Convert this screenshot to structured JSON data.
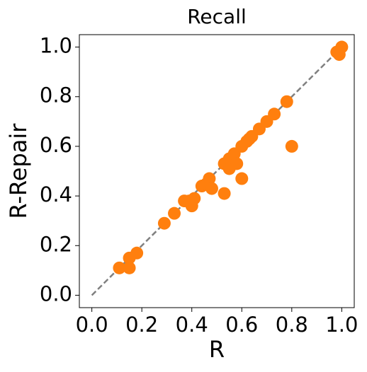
{
  "chart_data": {
    "type": "scatter",
    "title": "Recall",
    "x_label": "R",
    "y_label": "R-Repair",
    "series": [
      {
        "color": "#ff7f0e",
        "x": [
          0.11,
          0.15,
          0.15,
          0.18,
          0.29,
          0.33,
          0.37,
          0.39,
          0.4,
          0.41,
          0.44,
          0.46,
          0.47,
          0.48,
          0.53,
          0.53,
          0.55,
          0.55,
          0.56,
          0.57,
          0.58,
          0.6,
          0.6,
          0.62,
          0.63,
          0.64,
          0.67,
          0.7,
          0.73,
          0.78,
          0.8,
          0.98,
          0.99,
          1.0
        ],
        "values": [
          0.11,
          0.15,
          0.11,
          0.17,
          0.29,
          0.33,
          0.38,
          0.38,
          0.36,
          0.39,
          0.44,
          0.45,
          0.47,
          0.43,
          0.53,
          0.41,
          0.55,
          0.51,
          0.53,
          0.57,
          0.53,
          0.6,
          0.47,
          0.62,
          0.63,
          0.64,
          0.67,
          0.7,
          0.73,
          0.78,
          0.6,
          0.98,
          0.97,
          1.0
        ]
      }
    ],
    "reference_line": {
      "x": [
        0,
        1
      ],
      "values": [
        0,
        1
      ],
      "color": "#808080",
      "dashed": true
    },
    "xlim": [
      -0.05,
      1.05
    ],
    "ylim": [
      -0.05,
      1.05
    ],
    "xticks": [
      {
        "value": 0,
        "label": "0.0"
      },
      0.2,
      0.4,
      0.6,
      0.8,
      {
        "value": 1,
        "label": "1.0"
      }
    ],
    "yticks": [
      {
        "value": 0,
        "label": "0.0"
      },
      0.2,
      0.4,
      0.6,
      0.8,
      {
        "value": 1,
        "label": "1.0"
      }
    ],
    "grid": false
  }
}
